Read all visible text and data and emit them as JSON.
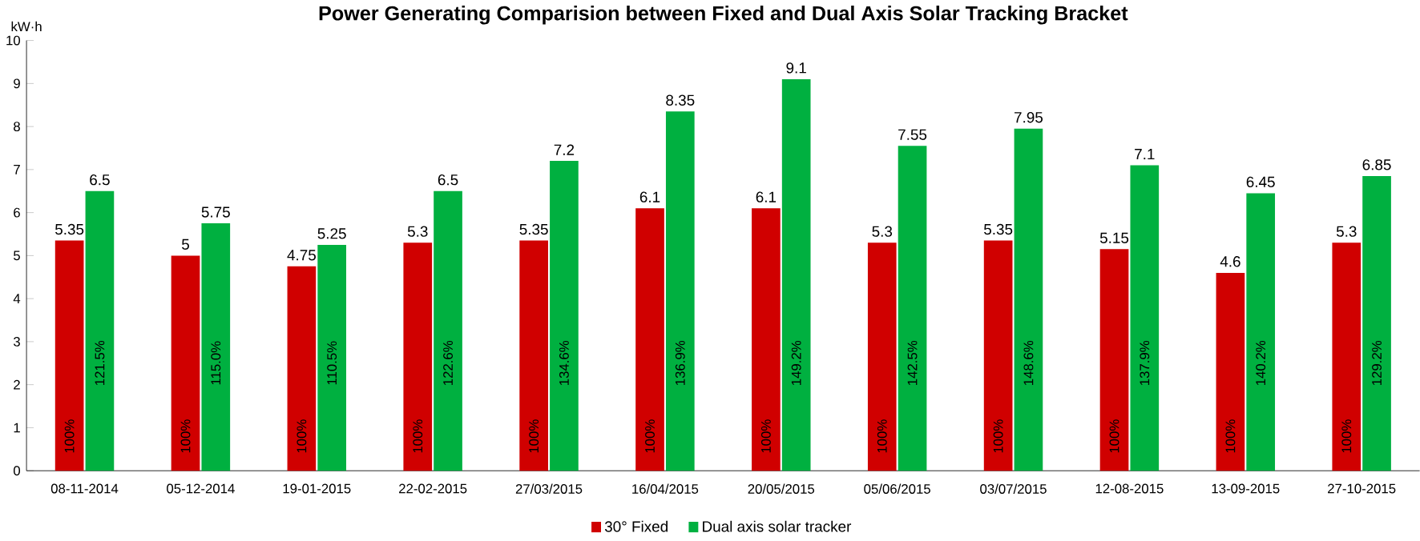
{
  "chart_data": {
    "type": "bar",
    "title": "Power Generating Comparision between Fixed and Dual Axis Solar Tracking Bracket",
    "ylabel": "kW·h",
    "categories": [
      "08-11-2014",
      "05-12-2014",
      "19-01-2015",
      "22-02-2015",
      "27/03/2015",
      "16/04/2015",
      "20/05/2015",
      "05/06/2015",
      "03/07/2015",
      "12-08-2015",
      "13-09-2015",
      "27-10-2015"
    ],
    "series": [
      {
        "name": "30° Fixed",
        "color": "#d00000",
        "values": [
          5.35,
          5,
          4.75,
          5.3,
          5.35,
          6.1,
          6.1,
          5.3,
          5.35,
          5.15,
          4.6,
          5.3
        ]
      },
      {
        "name": "Dual axis solar tracker",
        "color": "#00b040",
        "values": [
          6.5,
          5.75,
          5.25,
          6.5,
          7.2,
          8.35,
          9.1,
          7.55,
          7.95,
          7.1,
          6.45,
          6.85
        ]
      }
    ],
    "ylim": [
      0,
      10
    ],
    "yticks": [
      0,
      1,
      2,
      3,
      4,
      5,
      6,
      7,
      8,
      9,
      10
    ],
    "data_labels": true,
    "legend": "bottom",
    "annotations": [
      {
        "text": "100%",
        "x": "08-11-2014",
        "y": 0.8
      },
      {
        "text": "100%",
        "x": "05-12-2014",
        "y": 0.8
      },
      {
        "text": "100%",
        "x": "19-01-2015",
        "y": 0.8
      },
      {
        "text": "100%",
        "x": "22-02-2015",
        "y": 0.8
      },
      {
        "text": "100%",
        "x": "27/03/2015",
        "y": 0.8
      },
      {
        "text": "100%",
        "x": "16/04/2015",
        "y": 0.8
      },
      {
        "text": "100%",
        "x": "20/05/2015",
        "y": 0.8
      },
      {
        "text": "100%",
        "x": "05/06/2015",
        "y": 0.8
      },
      {
        "text": "100%",
        "x": "03/07/2015",
        "y": 0.8
      },
      {
        "text": "100%",
        "x": "12-08-2015",
        "y": 0.8
      },
      {
        "text": "100%",
        "x": "13-09-2015",
        "y": 0.8
      },
      {
        "text": "100%",
        "x": "27-10-2015",
        "y": 0.8
      },
      {
        "text": "121.5%",
        "x": "08-11-2014",
        "y": 2.5
      },
      {
        "text": "115.0%",
        "x": "05-12-2014",
        "y": 2.5
      },
      {
        "text": "110.5%",
        "x": "19-01-2015",
        "y": 2.5
      },
      {
        "text": "122.6%",
        "x": "22-02-2015",
        "y": 2.5
      },
      {
        "text": "134.6%",
        "x": "27/03/2015",
        "y": 2.5
      },
      {
        "text": "136.9%",
        "x": "16/04/2015",
        "y": 2.5
      },
      {
        "text": "149.2%",
        "x": "20/05/2015",
        "y": 2.5
      },
      {
        "text": "142.5%",
        "x": "05/06/2015",
        "y": 2.5
      },
      {
        "text": "148.6%",
        "x": "03/07/2015",
        "y": 2.5
      },
      {
        "text": "137.9%",
        "x": "12-08-2015",
        "y": 2.5
      },
      {
        "text": "140.2%",
        "x": "13-09-2015",
        "y": 2.5
      },
      {
        "text": "129.2%",
        "x": "27-10-2015",
        "y": 2.5
      }
    ]
  }
}
